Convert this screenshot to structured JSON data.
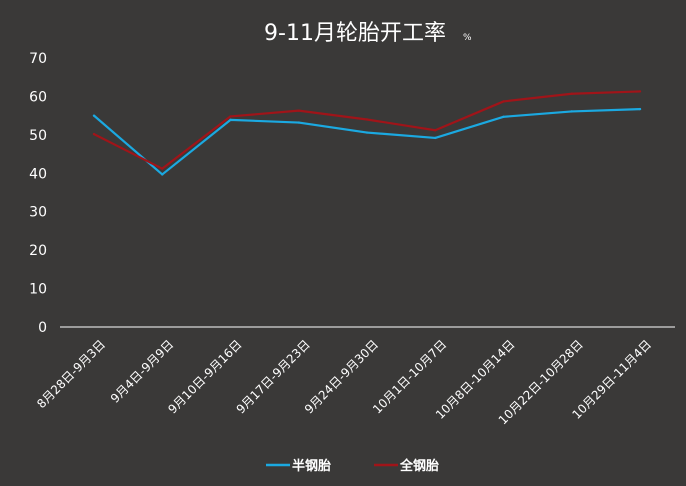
{
  "chart_data": {
    "type": "line",
    "title": "9-11月轮胎开工率",
    "title_unit": "%",
    "categories": [
      "8月28日-9月3日",
      "9月4日-9月9日",
      "9月10日-9月16日",
      "9月17日-9月23日",
      "9月24日-9月30日",
      "10月1日-10月7日",
      "10月8日-10月14日",
      "10月22日-10月28日",
      "10月29日-11月4日"
    ],
    "series": [
      {
        "name": "半钢胎",
        "color": "#1ba9e1",
        "values": [
          55.0,
          39.7,
          53.9,
          53.2,
          50.6,
          49.2,
          54.7,
          56.1,
          56.7
        ]
      },
      {
        "name": "全钢胎",
        "color": "#a01419",
        "values": [
          50.2,
          41.2,
          54.8,
          56.3,
          54.0,
          51.2,
          58.7,
          60.7,
          61.3
        ]
      }
    ],
    "y_ticks": [
      "0",
      "10",
      "20",
      "30",
      "40",
      "50",
      "60",
      "70"
    ],
    "ylim": [
      0,
      70
    ],
    "grid": false,
    "legend_position": "bottom"
  }
}
